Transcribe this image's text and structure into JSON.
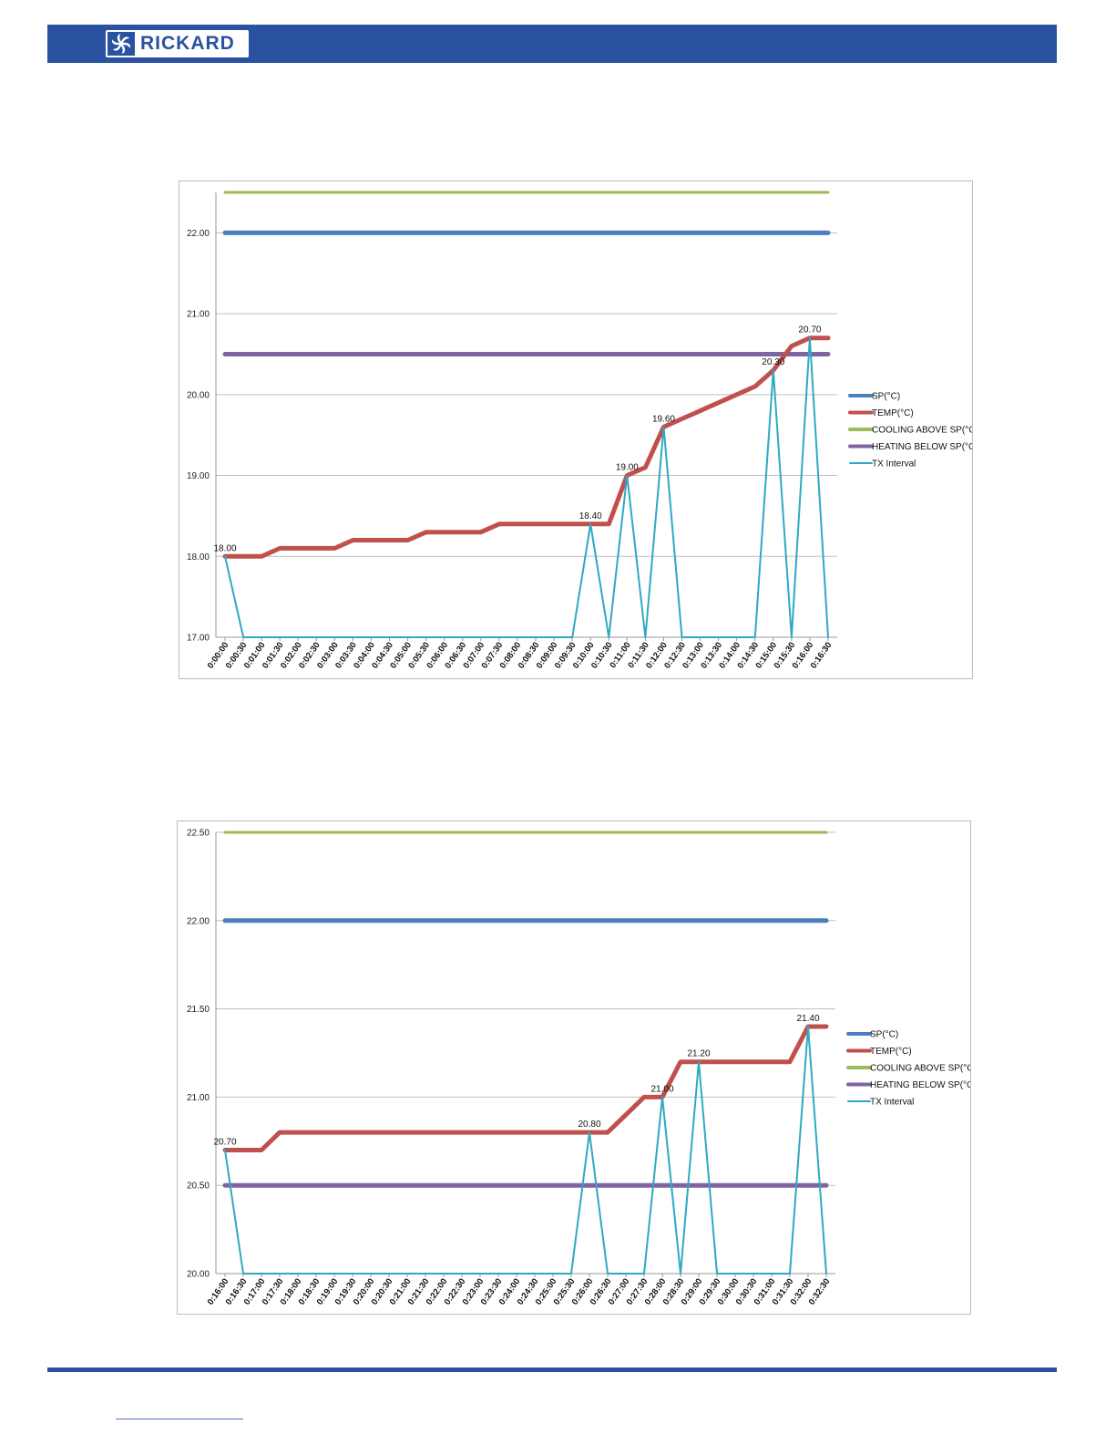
{
  "header": {
    "logo_text": "RICKARD",
    "logo_icon": "fan-icon",
    "bar_color": "#2a52a0"
  },
  "colors": {
    "sp": "#4a7fc0",
    "temp": "#c0504d",
    "cooling": "#9bbb59",
    "heating": "#8064a2",
    "tx": "#2ea9c4",
    "grid": "#bfbfbf",
    "brand": "#2a52a0"
  },
  "chart_data": [
    {
      "type": "line",
      "title": "",
      "xlabel": "",
      "ylabel": "",
      "ylim": [
        17,
        22.5
      ],
      "yticks": [
        "17.00",
        "18.00",
        "19.00",
        "20.00",
        "21.00",
        "22.00"
      ],
      "grid": true,
      "legend_position": "right",
      "x": [
        "0:00:00",
        "0:00:30",
        "0:01:00",
        "0:01:30",
        "0:02:00",
        "0:02:30",
        "0:03:00",
        "0:03:30",
        "0:04:00",
        "0:04:30",
        "0:05:00",
        "0:05:30",
        "0:06:00",
        "0:06:30",
        "0:07:00",
        "0:07:30",
        "0:08:00",
        "0:08:30",
        "0:09:00",
        "0:09:30",
        "0:10:00",
        "0:10:30",
        "0:11:00",
        "0:11:30",
        "0:12:00",
        "0:12:30",
        "0:13:00",
        "0:13:30",
        "0:14:00",
        "0:14:30",
        "0:15:00",
        "0:15:30",
        "0:16:00",
        "0:16:30"
      ],
      "series": [
        {
          "name": "SP(°C)",
          "key": "sp",
          "values": [
            22,
            22,
            22,
            22,
            22,
            22,
            22,
            22,
            22,
            22,
            22,
            22,
            22,
            22,
            22,
            22,
            22,
            22,
            22,
            22,
            22,
            22,
            22,
            22,
            22,
            22,
            22,
            22,
            22,
            22,
            22,
            22,
            22,
            22
          ]
        },
        {
          "name": "TEMP(°C)",
          "key": "temp",
          "values": [
            18.0,
            18.0,
            18.0,
            18.1,
            18.1,
            18.1,
            18.1,
            18.2,
            18.2,
            18.2,
            18.2,
            18.3,
            18.3,
            18.3,
            18.3,
            18.4,
            18.4,
            18.4,
            18.4,
            18.4,
            18.4,
            18.4,
            19.0,
            19.1,
            19.6,
            19.7,
            19.8,
            19.9,
            20.0,
            20.1,
            20.3,
            20.6,
            20.7,
            20.7
          ]
        },
        {
          "name": "COOLING ABOVE SP(°C)",
          "key": "cooling",
          "values": [
            22.5,
            22.5,
            22.5,
            22.5,
            22.5,
            22.5,
            22.5,
            22.5,
            22.5,
            22.5,
            22.5,
            22.5,
            22.5,
            22.5,
            22.5,
            22.5,
            22.5,
            22.5,
            22.5,
            22.5,
            22.5,
            22.5,
            22.5,
            22.5,
            22.5,
            22.5,
            22.5,
            22.5,
            22.5,
            22.5,
            22.5,
            22.5,
            22.5,
            22.5
          ]
        },
        {
          "name": "HEATING BELOW SP(°C)",
          "key": "heating",
          "values": [
            20.5,
            20.5,
            20.5,
            20.5,
            20.5,
            20.5,
            20.5,
            20.5,
            20.5,
            20.5,
            20.5,
            20.5,
            20.5,
            20.5,
            20.5,
            20.5,
            20.5,
            20.5,
            20.5,
            20.5,
            20.5,
            20.5,
            20.5,
            20.5,
            20.5,
            20.5,
            20.5,
            20.5,
            20.5,
            20.5,
            20.5,
            20.5,
            20.5,
            20.5
          ]
        },
        {
          "name": "TX Interval",
          "key": "tx",
          "values": [
            18.0,
            17,
            17,
            17,
            17,
            17,
            17,
            17,
            17,
            17,
            17,
            17,
            17,
            17,
            17,
            17,
            17,
            17,
            17,
            17,
            18.4,
            17,
            19.0,
            17,
            19.6,
            17,
            17,
            17,
            17,
            17,
            20.3,
            17,
            20.7,
            17
          ]
        }
      ],
      "data_labels": [
        {
          "index": 0,
          "text": "18.00"
        },
        {
          "index": 20,
          "text": "18.40"
        },
        {
          "index": 22,
          "text": "19.00"
        },
        {
          "index": 24,
          "text": "19.60"
        },
        {
          "index": 30,
          "text": "20.30"
        },
        {
          "index": 32,
          "text": "20.70"
        }
      ]
    },
    {
      "type": "line",
      "title": "",
      "xlabel": "",
      "ylabel": "",
      "ylim": [
        20,
        22.5
      ],
      "yticks": [
        "20.00",
        "20.50",
        "21.00",
        "21.50",
        "22.00",
        "22.50"
      ],
      "grid": true,
      "legend_position": "right",
      "x": [
        "0:16:00",
        "0:16:30",
        "0:17:00",
        "0:17:30",
        "0:18:00",
        "0:18:30",
        "0:19:00",
        "0:19:30",
        "0:20:00",
        "0:20:30",
        "0:21:00",
        "0:21:30",
        "0:22:00",
        "0:22:30",
        "0:23:00",
        "0:23:30",
        "0:24:00",
        "0:24:30",
        "0:25:00",
        "0:25:30",
        "0:26:00",
        "0:26:30",
        "0:27:00",
        "0:27:30",
        "0:28:00",
        "0:28:30",
        "0:29:00",
        "0:29:30",
        "0:30:00",
        "0:30:30",
        "0:31:00",
        "0:31:30",
        "0:32:00",
        "0:32:30"
      ],
      "series": [
        {
          "name": "SP(°C)",
          "key": "sp",
          "values": [
            22,
            22,
            22,
            22,
            22,
            22,
            22,
            22,
            22,
            22,
            22,
            22,
            22,
            22,
            22,
            22,
            22,
            22,
            22,
            22,
            22,
            22,
            22,
            22,
            22,
            22,
            22,
            22,
            22,
            22,
            22,
            22,
            22,
            22
          ]
        },
        {
          "name": "TEMP(°C)",
          "key": "temp",
          "values": [
            20.7,
            20.7,
            20.7,
            20.8,
            20.8,
            20.8,
            20.8,
            20.8,
            20.8,
            20.8,
            20.8,
            20.8,
            20.8,
            20.8,
            20.8,
            20.8,
            20.8,
            20.8,
            20.8,
            20.8,
            20.8,
            20.8,
            20.9,
            21.0,
            21.0,
            21.2,
            21.2,
            21.2,
            21.2,
            21.2,
            21.2,
            21.2,
            21.4,
            21.4
          ]
        },
        {
          "name": "COOLING ABOVE SP(°C)",
          "key": "cooling",
          "values": [
            22.5,
            22.5,
            22.5,
            22.5,
            22.5,
            22.5,
            22.5,
            22.5,
            22.5,
            22.5,
            22.5,
            22.5,
            22.5,
            22.5,
            22.5,
            22.5,
            22.5,
            22.5,
            22.5,
            22.5,
            22.5,
            22.5,
            22.5,
            22.5,
            22.5,
            22.5,
            22.5,
            22.5,
            22.5,
            22.5,
            22.5,
            22.5,
            22.5,
            22.5
          ]
        },
        {
          "name": "HEATING BELOW SP(°C)",
          "key": "heating",
          "values": [
            20.5,
            20.5,
            20.5,
            20.5,
            20.5,
            20.5,
            20.5,
            20.5,
            20.5,
            20.5,
            20.5,
            20.5,
            20.5,
            20.5,
            20.5,
            20.5,
            20.5,
            20.5,
            20.5,
            20.5,
            20.5,
            20.5,
            20.5,
            20.5,
            20.5,
            20.5,
            20.5,
            20.5,
            20.5,
            20.5,
            20.5,
            20.5,
            20.5,
            20.5
          ]
        },
        {
          "name": "TX Interval",
          "key": "tx",
          "values": [
            20.7,
            20,
            20,
            20,
            20,
            20,
            20,
            20,
            20,
            20,
            20,
            20,
            20,
            20,
            20,
            20,
            20,
            20,
            20,
            20,
            20.8,
            20,
            20,
            20,
            21.0,
            20,
            21.2,
            20,
            20,
            20,
            20,
            20,
            21.4,
            20
          ]
        }
      ],
      "data_labels": [
        {
          "index": 0,
          "text": "20.70"
        },
        {
          "index": 20,
          "text": "20.80"
        },
        {
          "index": 24,
          "text": "21.00"
        },
        {
          "index": 26,
          "text": "21.20"
        },
        {
          "index": 32,
          "text": "21.40"
        }
      ]
    }
  ]
}
